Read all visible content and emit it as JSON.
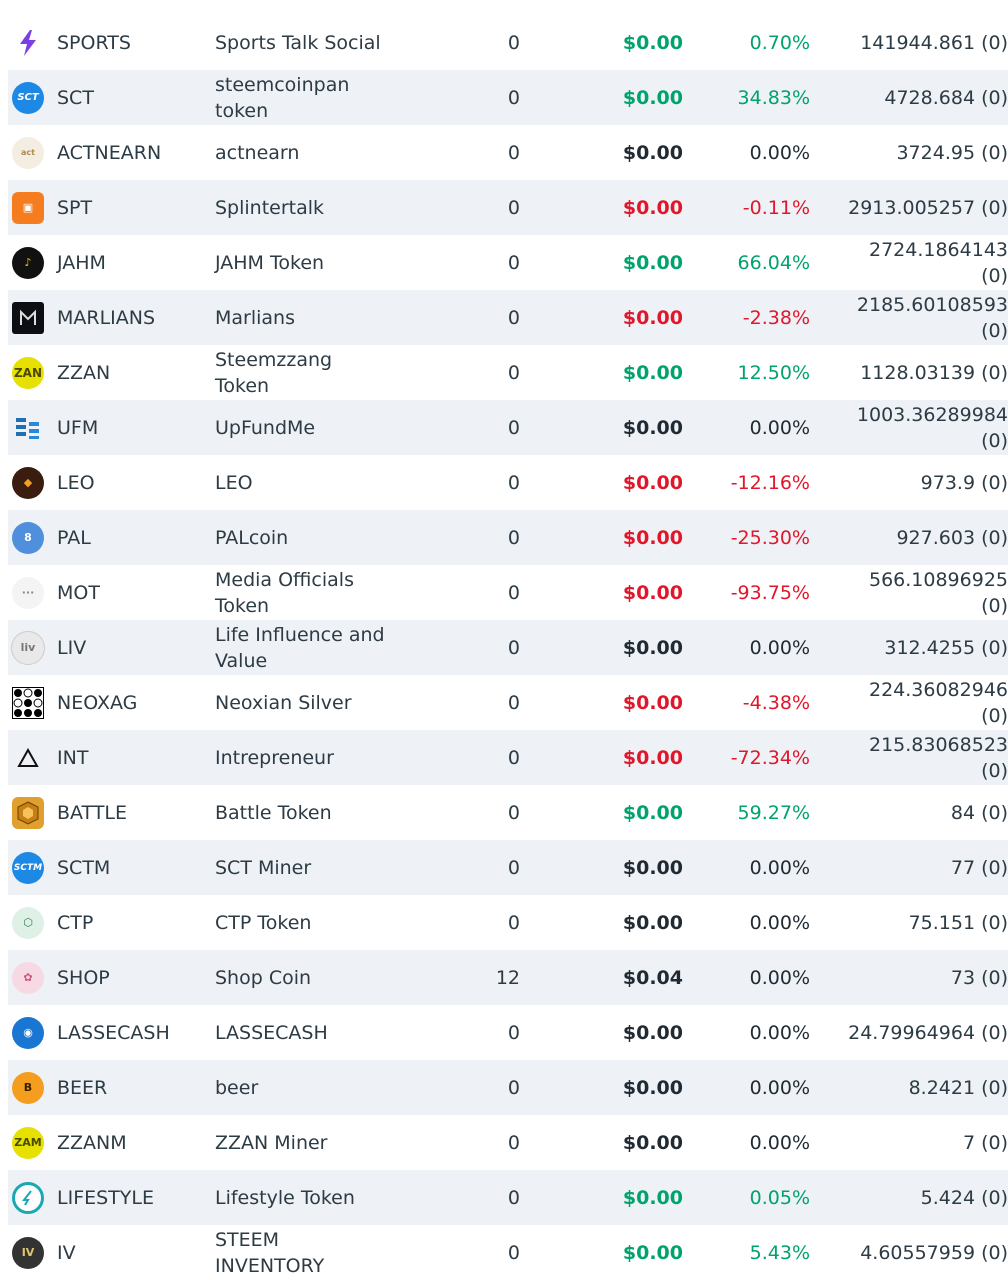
{
  "rows": [
    {
      "icon": "sports-lightning-icon",
      "symbol": "SPORTS",
      "name": "Sports Talk Social",
      "count": "0",
      "value": "$0.00",
      "value_trend": "pos",
      "change": "0.70%",
      "change_trend": "pos",
      "volume": "141944.861 (0)"
    },
    {
      "icon": "sct-logo-icon",
      "icon_text": "SCT",
      "symbol": "SCT",
      "name": "steemcoinpan token",
      "count": "0",
      "value": "$0.00",
      "value_trend": "pos",
      "change": "34.83%",
      "change_trend": "pos",
      "volume": "4728.684 (0)"
    },
    {
      "icon": "actnearn-logo-icon",
      "symbol": "ACTNEARN",
      "name": "actnearn",
      "count": "0",
      "value": "$0.00",
      "value_trend": "neu",
      "change": "0.00%",
      "change_trend": "neu",
      "volume": "3724.95 (0)"
    },
    {
      "icon": "splintertalk-logo-icon",
      "symbol": "SPT",
      "name": "Splintertalk",
      "count": "0",
      "value": "$0.00",
      "value_trend": "neg",
      "change": "-0.11%",
      "change_trend": "neg",
      "volume": "2913.005257 (0)"
    },
    {
      "icon": "jahm-logo-icon",
      "symbol": "JAHM",
      "name": "JAHM Token",
      "count": "0",
      "value": "$0.00",
      "value_trend": "pos",
      "change": "66.04%",
      "change_trend": "pos",
      "volume": "2724.1864143 (0)"
    },
    {
      "icon": "marlians-logo-icon",
      "symbol": "MARLIANS",
      "name": "Marlians",
      "count": "0",
      "value": "$0.00",
      "value_trend": "neg",
      "change": "-2.38%",
      "change_trend": "neg",
      "volume": "2185.60108593 (0)"
    },
    {
      "icon": "zzan-logo-icon",
      "symbol": "ZZAN",
      "name": "Steemzzang Token",
      "count": "0",
      "value": "$0.00",
      "value_trend": "pos",
      "change": "12.50%",
      "change_trend": "pos",
      "volume": "1128.03139 (0)"
    },
    {
      "icon": "upfundme-logo-icon",
      "symbol": "UFM",
      "name": "UpFundMe",
      "count": "0",
      "value": "$0.00",
      "value_trend": "neu",
      "change": "0.00%",
      "change_trend": "neu",
      "volume": "1003.36289984 (0)"
    },
    {
      "icon": "leo-logo-icon",
      "symbol": "LEO",
      "name": "LEO",
      "count": "0",
      "value": "$0.00",
      "value_trend": "neg",
      "change": "-12.16%",
      "change_trend": "neg",
      "volume": "973.9 (0)"
    },
    {
      "icon": "palcoin-logo-icon",
      "symbol": "PAL",
      "name": "PALcoin",
      "count": "0",
      "value": "$0.00",
      "value_trend": "neg",
      "change": "-25.30%",
      "change_trend": "neg",
      "volume": "927.603 (0)"
    },
    {
      "icon": "mot-logo-icon",
      "symbol": "MOT",
      "name": "Media Officials Token",
      "count": "0",
      "value": "$0.00",
      "value_trend": "neg",
      "change": "-93.75%",
      "change_trend": "neg",
      "volume": "566.10896925 (0)"
    },
    {
      "icon": "liv-logo-icon",
      "symbol": "LIV",
      "name": "Life Influence and Value",
      "count": "0",
      "value": "$0.00",
      "value_trend": "neu",
      "change": "0.00%",
      "change_trend": "neu",
      "volume": "312.4255 (0)"
    },
    {
      "icon": "neoxag-grid-icon",
      "symbol": "NEOXAG",
      "name": "Neoxian Silver",
      "count": "0",
      "value": "$0.00",
      "value_trend": "neg",
      "change": "-4.38%",
      "change_trend": "neg",
      "volume": "224.36082946 (0)"
    },
    {
      "icon": "intrepreneur-triangle-icon",
      "symbol": "INT",
      "name": "Intrepreneur",
      "count": "0",
      "value": "$0.00",
      "value_trend": "neg",
      "change": "-72.34%",
      "change_trend": "neg",
      "volume": "215.83068523 (0)"
    },
    {
      "icon": "battle-token-icon",
      "symbol": "BATTLE",
      "name": "Battle Token",
      "count": "0",
      "value": "$0.00",
      "value_trend": "pos",
      "change": "59.27%",
      "change_trend": "pos",
      "volume": "84 (0)"
    },
    {
      "icon": "sctm-logo-icon",
      "icon_text": "SCTM",
      "symbol": "SCTM",
      "name": "SCT Miner",
      "count": "0",
      "value": "$0.00",
      "value_trend": "neu",
      "change": "0.00%",
      "change_trend": "neu",
      "volume": "77 (0)"
    },
    {
      "icon": "ctp-logo-icon",
      "symbol": "CTP",
      "name": "CTP Token",
      "count": "0",
      "value": "$0.00",
      "value_trend": "neu",
      "change": "0.00%",
      "change_trend": "neu",
      "volume": "75.151 (0)"
    },
    {
      "icon": "shop-coin-icon",
      "symbol": "SHOP",
      "name": "Shop Coin",
      "count": "12",
      "value": "$0.04",
      "value_trend": "neu",
      "change": "0.00%",
      "change_trend": "neu",
      "volume": "73 (0)"
    },
    {
      "icon": "lassecash-logo-icon",
      "symbol": "LASSECASH",
      "name": "LASSECASH",
      "count": "0",
      "value": "$0.00",
      "value_trend": "neu",
      "change": "0.00%",
      "change_trend": "neu",
      "volume": "24.79964964 (0)"
    },
    {
      "icon": "beer-logo-icon",
      "symbol": "BEER",
      "name": "beer",
      "count": "0",
      "value": "$0.00",
      "value_trend": "neu",
      "change": "0.00%",
      "change_trend": "neu",
      "volume": "8.2421 (0)"
    },
    {
      "icon": "zzanm-logo-icon",
      "symbol": "ZZANM",
      "name": "ZZAN Miner",
      "count": "0",
      "value": "$0.00",
      "value_trend": "neu",
      "change": "0.00%",
      "change_trend": "neu",
      "volume": "7 (0)"
    },
    {
      "icon": "lifestyle-logo-icon",
      "symbol": "LIFESTYLE",
      "name": "Lifestyle Token",
      "count": "0",
      "value": "$0.00",
      "value_trend": "pos",
      "change": "0.05%",
      "change_trend": "pos",
      "volume": "5.424 (0)"
    },
    {
      "icon": "iv-logo-icon",
      "symbol": "IV",
      "name": "STEEM INVENTORY",
      "count": "0",
      "value": "$0.00",
      "value_trend": "pos",
      "change": "5.43%",
      "change_trend": "pos",
      "volume": "4.60557959 (0)"
    }
  ],
  "colors": {
    "positive": "#00a36b",
    "negative": "#e0172b",
    "neutral": "#1f2a33",
    "row_shade": "#eef1f5"
  }
}
